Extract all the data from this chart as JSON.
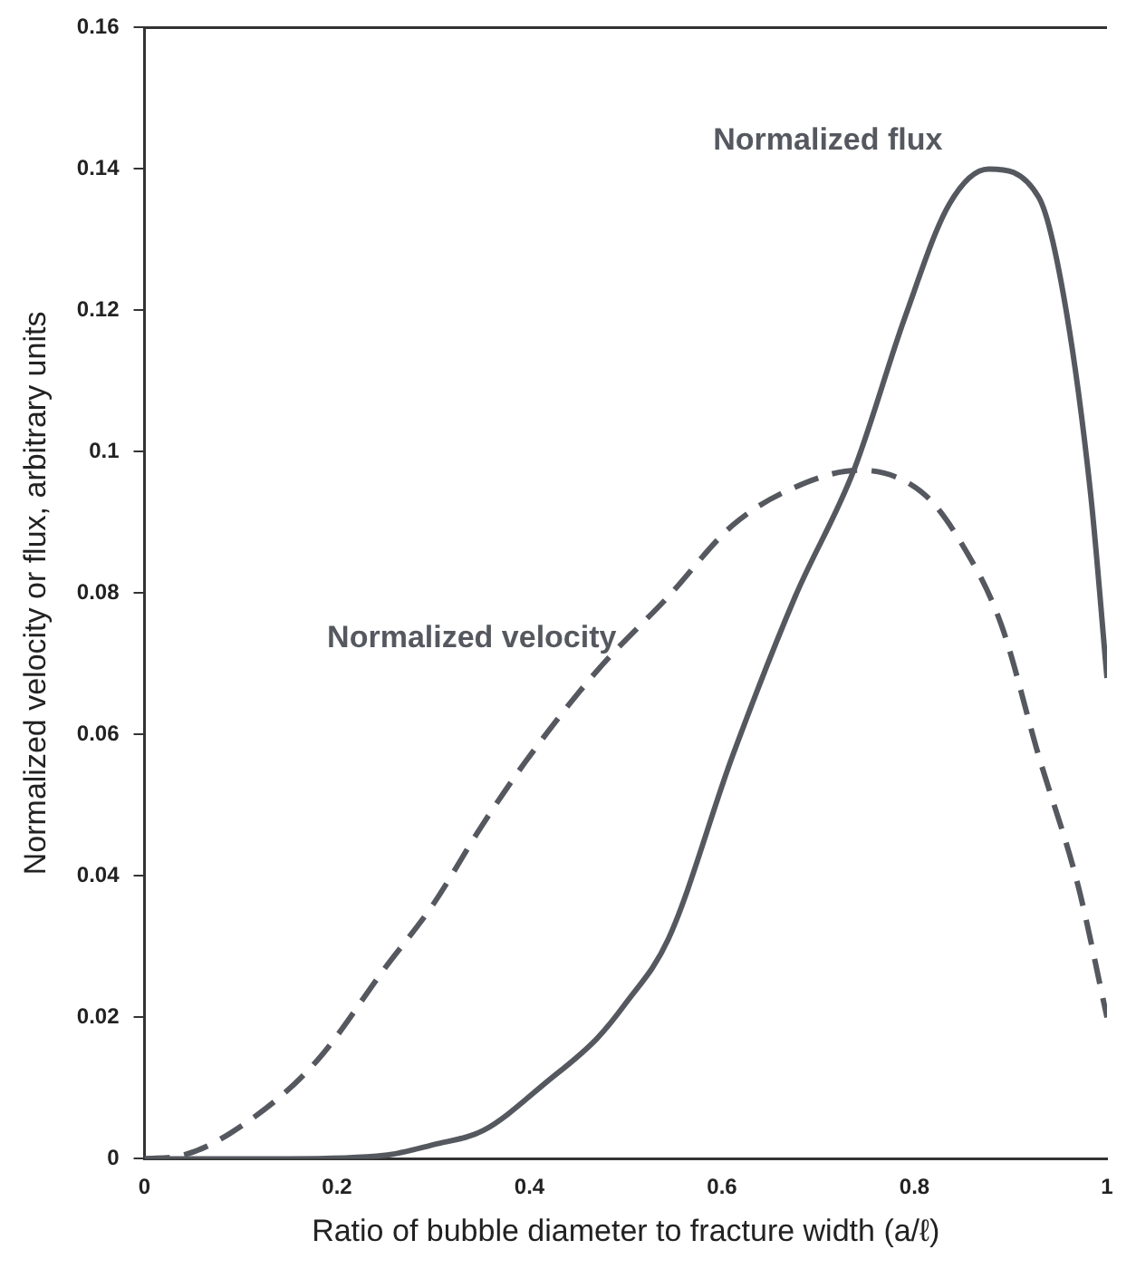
{
  "chart_data": {
    "type": "line",
    "xlabel": "Ratio of bubble diameter to fracture width (a/ℓ)",
    "ylabel": "Normalized velocity or flux, arbitrary units",
    "xlim": [
      0,
      1
    ],
    "xticks": [
      0,
      0.2,
      0.4,
      0.6,
      0.8,
      1
    ],
    "ylim": [
      0,
      0.16
    ],
    "yticks": [
      0,
      0.02,
      0.04,
      0.06,
      0.08,
      0.1,
      0.12,
      0.14,
      0.16
    ],
    "grid": false,
    "legend": false,
    "marker": "none",
    "series": [
      {
        "name": "Normalized flux",
        "color": "#55595f",
        "line_style": "solid",
        "x": [
          0,
          0.15,
          0.25,
          0.3,
          0.352,
          0.419,
          0.47,
          0.5,
          0.544,
          0.611,
          0.676,
          0.737,
          0.79,
          0.836,
          0.877,
          0.929,
          0.955,
          0.983,
          1.0
        ],
        "values": [
          0,
          0,
          0.0005,
          0.002,
          0.004,
          0.011,
          0.017,
          0.022,
          0.031,
          0.057,
          0.0795,
          0.0974,
          0.119,
          0.135,
          0.14,
          0.136,
          0.122,
          0.094,
          0.068
        ]
      },
      {
        "name": "Normalized velocity",
        "color": "#55595f",
        "line_style": "dashed",
        "x": [
          0,
          0.04,
          0.115,
          0.18,
          0.25,
          0.3,
          0.35,
          0.395,
          0.47,
          0.544,
          0.611,
          0.676,
          0.743,
          0.81,
          0.849,
          0.89,
          0.929,
          0.97,
          1.0
        ],
        "values": [
          0,
          0.0005,
          0.006,
          0.014,
          0.027,
          0.036,
          0.047,
          0.056,
          0.069,
          0.0795,
          0.0896,
          0.095,
          0.0974,
          0.094,
          0.087,
          0.0756,
          0.057,
          0.0386,
          0.02
        ]
      }
    ]
  }
}
